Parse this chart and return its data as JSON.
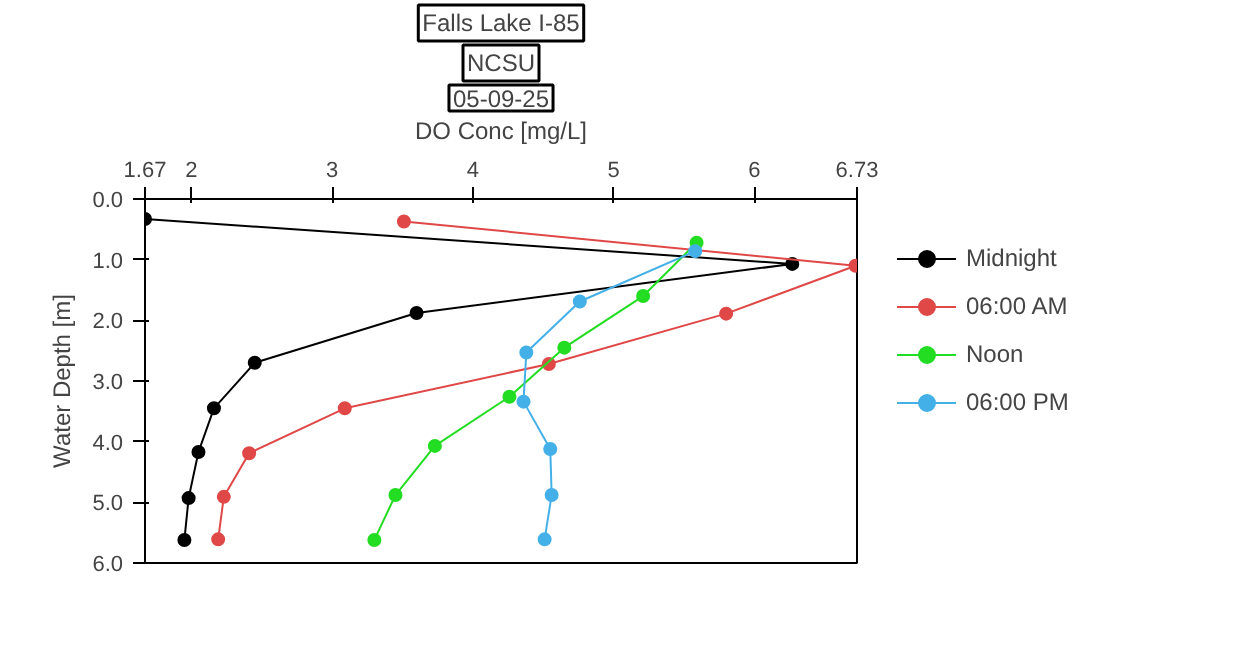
{
  "chart_data": {
    "type": "line",
    "title": "Falls Lake I-85",
    "subtitle": "NCSU",
    "annotations": [
      "05-09-25"
    ],
    "xlabel": "DO Conc [mg/L]",
    "ylabel": "Water Depth [m]",
    "xlim": [
      1.67,
      6.73
    ],
    "xticks": [
      1.67,
      2,
      3,
      4,
      5,
      6,
      6.73
    ],
    "ylim": [
      6.0,
      0.0
    ],
    "yticks": [
      {
        "value": 0,
        "label": "0.0"
      },
      {
        "value": 1,
        "label": "1.0"
      },
      {
        "value": 2,
        "label": "2.0"
      },
      {
        "value": 3,
        "label": "3.0"
      },
      {
        "value": 4,
        "label": "4.0"
      },
      {
        "value": 5,
        "label": "5.0"
      },
      {
        "value": 6,
        "label": "6.0"
      }
    ],
    "grid": false,
    "legend": "right",
    "marker": "circle",
    "line_style": "solid",
    "series": [
      {
        "name": "Midnight",
        "color": "#000000",
        "x": [
          1.67,
          6.27,
          3.6,
          2.45,
          2.16,
          2.05,
          1.98,
          1.95
        ],
        "values": [
          0.33,
          1.07,
          1.88,
          2.7,
          3.45,
          4.17,
          4.93,
          5.62
        ]
      },
      {
        "name": "06:00 AM",
        "color": "#e04848",
        "x": [
          3.51,
          6.72,
          5.8,
          4.54,
          3.09,
          2.41,
          2.23,
          2.19
        ],
        "values": [
          0.37,
          1.1,
          1.89,
          2.72,
          3.45,
          4.19,
          4.91,
          5.61
        ]
      },
      {
        "name": "Noon",
        "color": "#22dd22",
        "x": [
          5.59,
          5.21,
          4.65,
          4.26,
          3.73,
          3.45,
          3.3
        ],
        "values": [
          0.72,
          1.6,
          2.45,
          3.26,
          4.07,
          4.88,
          5.62
        ]
      },
      {
        "name": "06:00 PM",
        "color": "#44b0e8",
        "x": [
          5.58,
          4.76,
          4.38,
          4.36,
          4.55,
          4.56,
          4.51
        ],
        "values": [
          0.86,
          1.69,
          2.53,
          3.34,
          4.12,
          4.88,
          5.61
        ]
      }
    ]
  }
}
